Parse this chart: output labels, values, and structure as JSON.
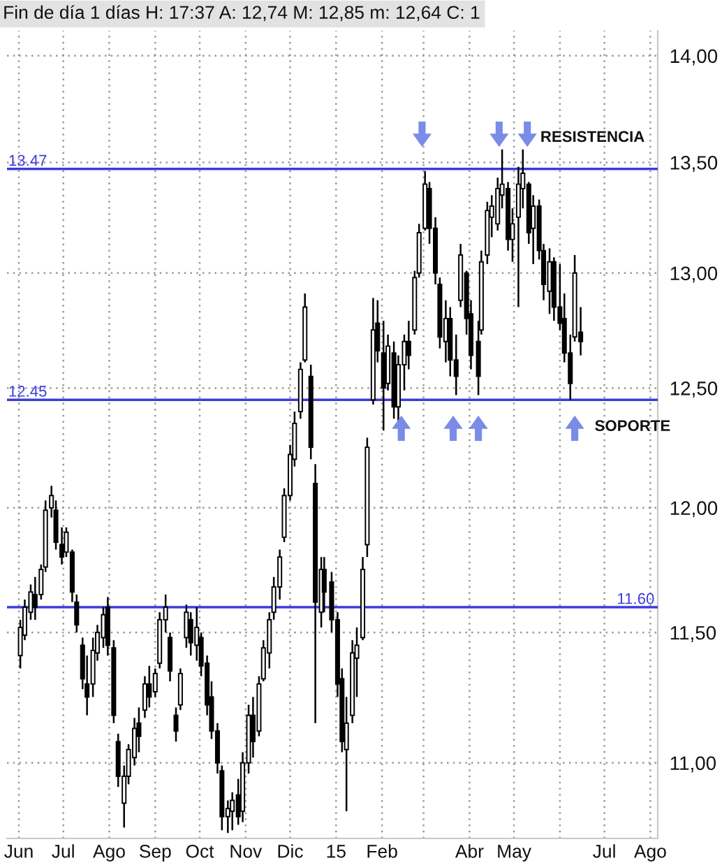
{
  "chart_data": {
    "type": "candlestick",
    "title": "Fin de día 1 días H: 17:37 A: 12,74 M: 12,85 m: 12,64 C: 1",
    "x": [
      "2014-06-02",
      "2014-06-05",
      "2014-06-09",
      "2014-06-12",
      "2014-06-16",
      "2014-06-19",
      "2014-06-23",
      "2014-06-26",
      "2014-06-30",
      "2014-07-03",
      "2014-07-07",
      "2014-07-10",
      "2014-07-14",
      "2014-07-17",
      "2014-07-21",
      "2014-07-24",
      "2014-07-28",
      "2014-07-31",
      "2014-08-04",
      "2014-08-07",
      "2014-08-11",
      "2014-08-14",
      "2014-08-18",
      "2014-08-21",
      "2014-08-25",
      "2014-08-28",
      "2014-09-01",
      "2014-09-04",
      "2014-09-08",
      "2014-09-11",
      "2014-09-15",
      "2014-09-18",
      "2014-09-22",
      "2014-09-25",
      "2014-09-29",
      "2014-10-02",
      "2014-10-06",
      "2014-10-09",
      "2014-10-13",
      "2014-10-16",
      "2014-10-20",
      "2014-10-23",
      "2014-10-27",
      "2014-10-30",
      "2014-11-03",
      "2014-11-06",
      "2014-11-10",
      "2014-11-13",
      "2014-11-17",
      "2014-11-20",
      "2014-11-24",
      "2014-11-27",
      "2014-12-01",
      "2014-12-04",
      "2014-12-08",
      "2014-12-11",
      "2014-12-15",
      "2014-12-18",
      "2014-12-22",
      "2014-12-24",
      "2014-12-29",
      "2015-01-02",
      "2015-01-05",
      "2015-01-08",
      "2015-01-12",
      "2015-01-15",
      "2015-01-19",
      "2015-01-22",
      "2015-01-26",
      "2015-01-29",
      "2015-02-02",
      "2015-02-05",
      "2015-02-09",
      "2015-02-12",
      "2015-02-16",
      "2015-02-19",
      "2015-02-23",
      "2015-02-26",
      "2015-03-02",
      "2015-03-05",
      "2015-03-09",
      "2015-03-12",
      "2015-03-16",
      "2015-03-19",
      "2015-03-23",
      "2015-03-26",
      "2015-03-30",
      "2015-04-02",
      "2015-04-07",
      "2015-04-09",
      "2015-04-13",
      "2015-04-16",
      "2015-04-20",
      "2015-04-23",
      "2015-04-27",
      "2015-04-30",
      "2015-05-04",
      "2015-05-07",
      "2015-05-11",
      "2015-05-14",
      "2015-05-18",
      "2015-05-21",
      "2015-05-25",
      "2015-05-28",
      "2015-06-01",
      "2015-06-04",
      "2015-06-08",
      "2015-06-11",
      "2015-06-15"
    ],
    "ohlc": [
      [
        11.41,
        11.55,
        11.36,
        11.52
      ],
      [
        11.49,
        11.63,
        11.47,
        11.6
      ],
      [
        11.58,
        11.69,
        11.55,
        11.66
      ],
      [
        11.65,
        11.72,
        11.55,
        11.6
      ],
      [
        11.65,
        11.77,
        11.63,
        11.75
      ],
      [
        11.76,
        12.03,
        11.74,
        11.99
      ],
      [
        12.0,
        12.09,
        11.96,
        12.05
      ],
      [
        11.99,
        12.03,
        11.83,
        11.86
      ],
      [
        11.85,
        11.92,
        11.77,
        11.8
      ],
      [
        11.82,
        11.92,
        11.8,
        11.9
      ],
      [
        11.82,
        11.83,
        11.62,
        11.66
      ],
      [
        11.62,
        11.65,
        11.5,
        11.53
      ],
      [
        11.45,
        11.48,
        11.28,
        11.32
      ],
      [
        11.3,
        11.41,
        11.18,
        11.25
      ],
      [
        11.3,
        11.48,
        11.25,
        11.43
      ],
      [
        11.42,
        11.53,
        11.39,
        11.5
      ],
      [
        11.48,
        11.6,
        11.44,
        11.57
      ],
      [
        11.6,
        11.64,
        11.41,
        11.45
      ],
      [
        11.44,
        11.47,
        11.15,
        11.18
      ],
      [
        11.08,
        11.11,
        10.91,
        10.95
      ],
      [
        10.85,
        10.99,
        10.76,
        10.95
      ],
      [
        10.95,
        11.07,
        10.92,
        11.05
      ],
      [
        11.02,
        11.17,
        10.99,
        11.13
      ],
      [
        11.15,
        11.21,
        11.04,
        11.1
      ],
      [
        11.2,
        11.33,
        11.17,
        11.3
      ],
      [
        11.3,
        11.37,
        11.21,
        11.25
      ],
      [
        11.27,
        11.36,
        11.25,
        11.34
      ],
      [
        11.38,
        11.58,
        11.36,
        11.55
      ],
      [
        11.55,
        11.65,
        11.5,
        11.6
      ],
      [
        11.48,
        11.5,
        11.31,
        11.35
      ],
      [
        11.18,
        11.21,
        11.08,
        11.12
      ],
      [
        11.22,
        11.36,
        11.2,
        11.34
      ],
      [
        11.48,
        11.61,
        11.44,
        11.58
      ],
      [
        11.55,
        11.58,
        11.41,
        11.46
      ],
      [
        11.45,
        11.6,
        11.39,
        11.52
      ],
      [
        11.48,
        11.5,
        11.33,
        11.37
      ],
      [
        11.38,
        11.41,
        11.18,
        11.22
      ],
      [
        11.25,
        11.31,
        11.09,
        11.12
      ],
      [
        11.12,
        11.15,
        10.96,
        11.0
      ],
      [
        10.97,
        10.99,
        10.75,
        10.8
      ],
      [
        10.8,
        10.86,
        10.74,
        10.83
      ],
      [
        10.82,
        10.89,
        10.75,
        10.86
      ],
      [
        10.88,
        10.94,
        10.77,
        10.8
      ],
      [
        10.82,
        11.04,
        10.78,
        11.0
      ],
      [
        11.0,
        11.22,
        10.96,
        11.18
      ],
      [
        11.18,
        11.25,
        11.02,
        11.08
      ],
      [
        11.12,
        11.33,
        11.1,
        11.3
      ],
      [
        11.32,
        11.47,
        11.31,
        11.44
      ],
      [
        11.42,
        11.58,
        11.36,
        11.55
      ],
      [
        11.58,
        11.72,
        11.55,
        11.68
      ],
      [
        11.68,
        11.83,
        11.63,
        11.8
      ],
      [
        11.88,
        12.08,
        11.86,
        12.05
      ],
      [
        12.05,
        12.26,
        12.03,
        12.22
      ],
      [
        12.2,
        12.4,
        12.17,
        12.35
      ],
      [
        12.4,
        12.61,
        12.37,
        12.58
      ],
      [
        12.62,
        12.91,
        12.61,
        12.85
      ],
      [
        12.55,
        12.6,
        12.2,
        12.25
      ],
      [
        12.1,
        12.18,
        11.15,
        11.62
      ],
      [
        11.58,
        11.8,
        11.52,
        11.75
      ],
      [
        11.75,
        11.8,
        11.58,
        11.66
      ],
      [
        11.7,
        11.74,
        11.5,
        11.55
      ],
      [
        11.55,
        11.58,
        11.25,
        11.3
      ],
      [
        11.32,
        11.36,
        11.04,
        11.08
      ],
      [
        11.05,
        11.25,
        10.82,
        11.15
      ],
      [
        11.18,
        11.47,
        11.15,
        11.42
      ],
      [
        11.4,
        11.52,
        11.25,
        11.45
      ],
      [
        11.48,
        11.8,
        11.47,
        11.75
      ],
      [
        11.85,
        12.29,
        11.8,
        12.25
      ],
      [
        12.45,
        12.89,
        12.43,
        12.75
      ],
      [
        12.78,
        12.88,
        12.61,
        12.66
      ],
      [
        12.65,
        12.79,
        12.32,
        12.5
      ],
      [
        12.52,
        12.73,
        12.49,
        12.68
      ],
      [
        12.65,
        12.7,
        12.37,
        12.42
      ],
      [
        12.42,
        12.64,
        12.35,
        12.6
      ],
      [
        12.6,
        12.73,
        12.49,
        12.7
      ],
      [
        12.7,
        12.79,
        12.58,
        12.64
      ],
      [
        12.75,
        13.01,
        12.73,
        12.98
      ],
      [
        13.0,
        13.22,
        12.98,
        13.18
      ],
      [
        13.2,
        13.46,
        13.19,
        13.4
      ],
      [
        13.38,
        13.41,
        13.13,
        13.2
      ],
      [
        13.2,
        13.25,
        12.95,
        13.0
      ],
      [
        12.95,
        12.98,
        12.67,
        12.72
      ],
      [
        12.7,
        12.88,
        12.61,
        12.8
      ],
      [
        12.8,
        12.85,
        12.55,
        12.62
      ],
      [
        12.62,
        12.73,
        12.47,
        12.55
      ],
      [
        12.88,
        13.13,
        12.85,
        13.08
      ],
      [
        13.0,
        13.01,
        12.73,
        12.8
      ],
      [
        12.82,
        12.88,
        12.58,
        12.64
      ],
      [
        12.7,
        12.79,
        12.47,
        12.55
      ],
      [
        12.75,
        13.1,
        12.73,
        13.05
      ],
      [
        13.08,
        13.32,
        13.04,
        13.28
      ],
      [
        13.25,
        13.35,
        13.16,
        13.3
      ],
      [
        13.22,
        13.43,
        13.19,
        13.38
      ],
      [
        13.35,
        13.56,
        13.29,
        13.4
      ],
      [
        13.38,
        13.41,
        13.1,
        13.15
      ],
      [
        13.15,
        13.29,
        13.05,
        13.22
      ],
      [
        13.25,
        13.48,
        12.85,
        13.4
      ],
      [
        13.38,
        13.56,
        13.29,
        13.45
      ],
      [
        13.4,
        13.41,
        13.13,
        13.18
      ],
      [
        13.2,
        13.35,
        13.04,
        13.3
      ],
      [
        13.3,
        13.33,
        13.06,
        13.1
      ],
      [
        13.1,
        13.13,
        12.88,
        12.95
      ],
      [
        12.92,
        13.11,
        12.82,
        13.05
      ],
      [
        13.05,
        13.07,
        12.79,
        12.85
      ],
      [
        12.85,
        13.04,
        12.75,
        12.78
      ],
      [
        12.8,
        12.91,
        12.61,
        12.65
      ],
      [
        12.65,
        12.73,
        12.45,
        12.52
      ],
      [
        12.72,
        13.08,
        12.7,
        13.0
      ],
      [
        12.74,
        12.85,
        12.64,
        12.7
      ]
    ],
    "series": [
      {
        "type": "scatter",
        "marker": "triangle",
        "color": "#7a8ce8",
        "x": [
          "2015-02-28",
          "2015-04-21",
          "2015-05-10",
          "2015-02-14",
          "2015-03-21",
          "2015-04-07",
          "2015-06-11"
        ],
        "values": [
          13.63,
          13.63,
          13.63,
          12.33,
          12.33,
          12.33,
          12.33
        ]
      }
    ],
    "ref_lines": [
      {
        "axis": "y",
        "value": 13.47,
        "label": "13.47",
        "color": "#3c3cdc"
      },
      {
        "axis": "y",
        "value": 12.45,
        "label": "12.45",
        "color": "#3c3cdc"
      },
      {
        "axis": "y",
        "value": 11.6,
        "label": "11.60",
        "color": "#3c3cdc"
      }
    ],
    "annotations": [
      {
        "text": "RESISTENCIA",
        "x": "2015-06-23",
        "y": 13.47
      },
      {
        "text": "SOPORTE",
        "x": "2015-07-20",
        "y": 12.45
      }
    ],
    "log": true,
    "xlim": [
      "2014-05-24",
      "2015-08-06"
    ],
    "xticks": [
      {
        "value": "2014-06-01",
        "label": "Jun"
      },
      {
        "value": "2014-07-01",
        "label": "Jul"
      },
      {
        "value": "2014-08-01",
        "label": "Ago"
      },
      {
        "value": "2014-09-01",
        "label": "Sep"
      },
      {
        "value": "2014-10-01",
        "label": "Oct"
      },
      {
        "value": "2014-11-01",
        "label": "Nov"
      },
      {
        "value": "2014-12-01",
        "label": "Dic"
      },
      {
        "value": "2015-01-01",
        "label": "15"
      },
      {
        "value": "2015-02-01",
        "label": "Feb"
      },
      {
        "value": "2015-03-01",
        "label": null
      },
      {
        "value": "2015-04-01",
        "label": "Abr"
      },
      {
        "value": "2015-05-01",
        "label": "May"
      },
      {
        "value": "2015-06-01",
        "label": null
      },
      {
        "value": "2015-07-01",
        "label": "Jul"
      },
      {
        "value": "2015-08-01",
        "label": "Ago"
      }
    ],
    "ylim": [
      10.72,
      14.12
    ],
    "yticks": [
      {
        "value": 11,
        "label": "11,00"
      },
      {
        "value": 11.5,
        "label": "11,50"
      },
      {
        "value": 12,
        "label": "12,00"
      },
      {
        "value": 12.5,
        "label": "12,50"
      },
      {
        "value": 13,
        "label": "13,00"
      },
      {
        "value": 13.5,
        "label": "13,50"
      },
      {
        "value": 14,
        "label": "14,00"
      }
    ],
    "grid": true
  }
}
